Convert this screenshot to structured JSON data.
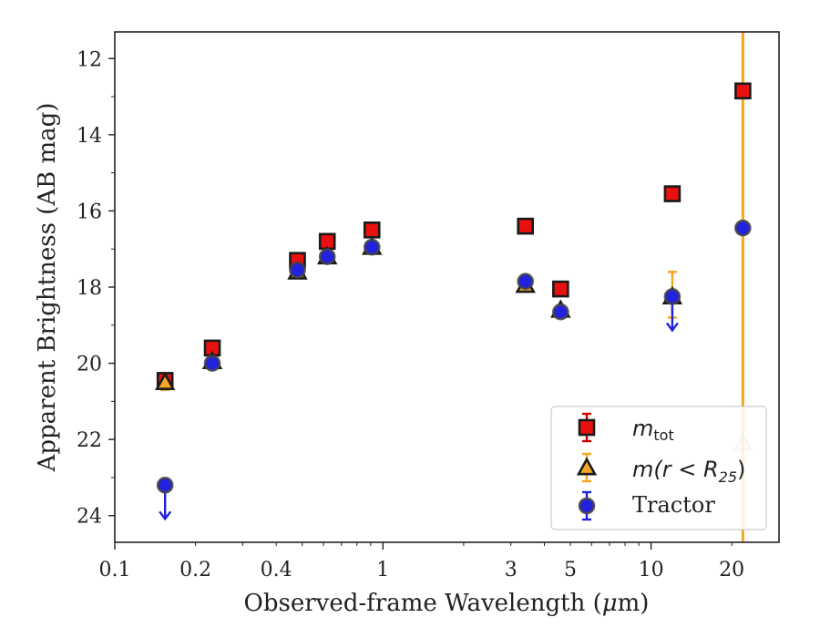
{
  "chart_data": {
    "type": "scatter",
    "xlabel_pre": "Observed-frame Wavelength (",
    "xlabel_mu": "μ",
    "xlabel_post": "m)",
    "ylabel": "Apparent Brightness (AB mag)",
    "xscale": "log",
    "xlim": [
      0.1,
      30
    ],
    "ylim": [
      24.7,
      11.3
    ],
    "y_inverted": true,
    "grid": false,
    "legend_position": "lower-right",
    "x_tick_labels": [
      {
        "value": 0.1,
        "label": "0.1"
      },
      {
        "value": 0.2,
        "label": "0.2"
      },
      {
        "value": 0.4,
        "label": "0.4"
      },
      {
        "value": 1,
        "label": "1"
      },
      {
        "value": 3,
        "label": "3"
      },
      {
        "value": 5,
        "label": "5"
      },
      {
        "value": 10,
        "label": "10"
      },
      {
        "value": 20,
        "label": "20"
      }
    ],
    "y_tick_labels": [
      {
        "value": 12,
        "label": "12"
      },
      {
        "value": 14,
        "label": "14"
      },
      {
        "value": 16,
        "label": "16"
      },
      {
        "value": 18,
        "label": "18"
      },
      {
        "value": 20,
        "label": "20"
      },
      {
        "value": 22,
        "label": "22"
      },
      {
        "value": 24,
        "label": "24"
      }
    ],
    "vertical_line": {
      "x": 22.0,
      "color": "#f5a623"
    },
    "series": [
      {
        "name": "m_tot",
        "legend_main": "m",
        "legend_sub": "tot",
        "marker": "square",
        "color": "#e8110f",
        "edge_color": "#1a1a1a",
        "errbar_color": "#cc0000",
        "points": [
          {
            "x": 0.154,
            "y": 20.45
          },
          {
            "x": 0.231,
            "y": 19.6
          },
          {
            "x": 0.48,
            "y": 17.3
          },
          {
            "x": 0.62,
            "y": 16.8
          },
          {
            "x": 0.91,
            "y": 16.5
          },
          {
            "x": 3.4,
            "y": 16.4
          },
          {
            "x": 4.6,
            "y": 18.05
          },
          {
            "x": 12.0,
            "y": 15.55
          },
          {
            "x": 22.0,
            "y": 12.85
          }
        ]
      },
      {
        "name": "m(r < R25)",
        "legend_main": "m(r < R",
        "legend_sub": "25",
        "legend_close": ")",
        "marker": "triangle",
        "color": "#f5a623",
        "edge_color": "#1a1a1a",
        "errbar_color": "#f5a623",
        "points": [
          {
            "x": 0.154,
            "y": 20.5,
            "yerr": 0.2
          },
          {
            "x": 0.231,
            "y": 19.95
          },
          {
            "x": 0.48,
            "y": 17.6
          },
          {
            "x": 0.62,
            "y": 17.2
          },
          {
            "x": 0.91,
            "y": 16.95
          },
          {
            "x": 3.4,
            "y": 17.95
          },
          {
            "x": 4.6,
            "y": 18.6
          },
          {
            "x": 12.0,
            "y": 18.25,
            "yerr_up": 0.65,
            "yerr_down": 0.55
          },
          {
            "x": 22.0,
            "y": 22.1,
            "faded": true
          }
        ]
      },
      {
        "name": "Tractor",
        "legend_main": "Tractor",
        "marker": "circle",
        "color": "#2222dd",
        "edge_color": "#444444",
        "errbar_color": "#2222dd",
        "points": [
          {
            "x": 0.154,
            "y": 23.2,
            "upper_limit": true
          },
          {
            "x": 0.231,
            "y": 20.0
          },
          {
            "x": 0.48,
            "y": 17.55
          },
          {
            "x": 0.62,
            "y": 17.2
          },
          {
            "x": 0.91,
            "y": 16.95
          },
          {
            "x": 3.4,
            "y": 17.85
          },
          {
            "x": 4.6,
            "y": 18.65
          },
          {
            "x": 12.0,
            "y": 18.25,
            "upper_limit": true
          },
          {
            "x": 22.0,
            "y": 16.45
          }
        ]
      }
    ]
  }
}
